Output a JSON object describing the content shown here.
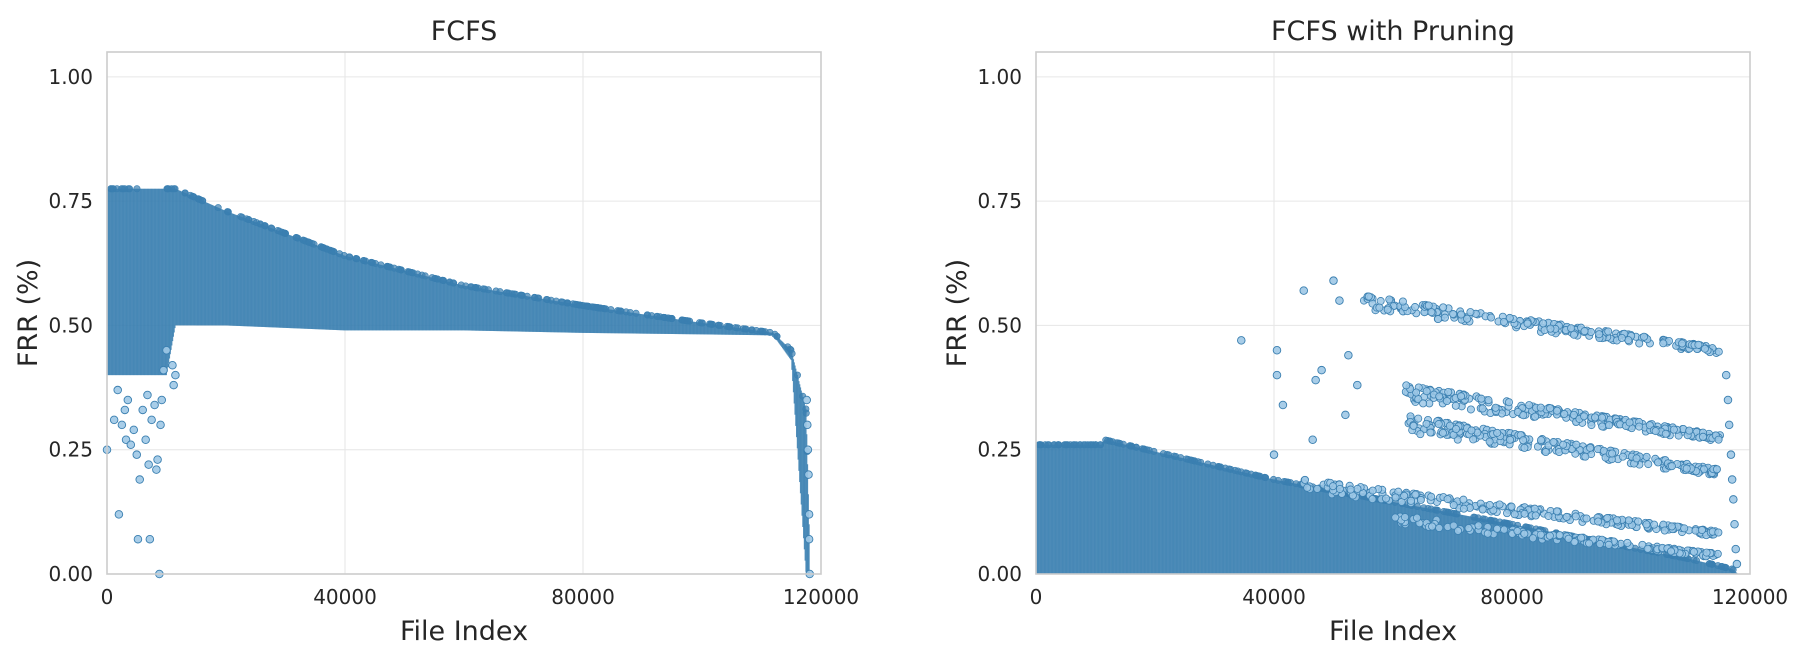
{
  "chart_data": [
    {
      "type": "scatter",
      "title": "FCFS",
      "xlabel": "File Index",
      "ylabel": "FRR (%)",
      "xlim": [
        0,
        120000
      ],
      "ylim": [
        0,
        1.05
      ],
      "xticks": [
        0,
        40000,
        80000,
        120000
      ],
      "yticks": [
        0.0,
        0.25,
        0.5,
        0.75,
        1.0
      ],
      "xtick_labels": [
        "0",
        "40000",
        "80000",
        "120000"
      ],
      "ytick_labels": [
        "0.00",
        "0.25",
        "0.50",
        "0.75",
        "1.00"
      ],
      "grid": true,
      "color": "#3a7fb0",
      "point_fill": "#9ec8e6",
      "band": {
        "x": [
          0,
          10000,
          11500,
          20000,
          40000,
          60000,
          80000,
          100000,
          112000,
          115000,
          117500,
          118000
        ],
        "upper": [
          0.775,
          0.775,
          0.775,
          0.73,
          0.64,
          0.58,
          0.54,
          0.505,
          0.485,
          0.45,
          0.33,
          0.1
        ],
        "lower": [
          0.4,
          0.4,
          0.5,
          0.5,
          0.49,
          0.49,
          0.485,
          0.482,
          0.48,
          0.43,
          0.0,
          0.0
        ]
      },
      "points": [
        [
          0,
          0.25
        ],
        [
          1200,
          0.31
        ],
        [
          1800,
          0.37
        ],
        [
          2000,
          0.12
        ],
        [
          2500,
          0.3
        ],
        [
          3000,
          0.33
        ],
        [
          3200,
          0.27
        ],
        [
          3500,
          0.35
        ],
        [
          4000,
          0.26
        ],
        [
          4500,
          0.29
        ],
        [
          5000,
          0.24
        ],
        [
          5200,
          0.07
        ],
        [
          5500,
          0.19
        ],
        [
          6000,
          0.33
        ],
        [
          6500,
          0.27
        ],
        [
          6800,
          0.36
        ],
        [
          7000,
          0.22
        ],
        [
          7200,
          0.07
        ],
        [
          7500,
          0.31
        ],
        [
          8000,
          0.34
        ],
        [
          8300,
          0.21
        ],
        [
          8500,
          0.23
        ],
        [
          8800,
          0.0
        ],
        [
          9000,
          0.3
        ],
        [
          9200,
          0.35
        ],
        [
          9500,
          0.41
        ],
        [
          10000,
          0.45
        ],
        [
          11000,
          0.42
        ],
        [
          11200,
          0.38
        ],
        [
          11500,
          0.4
        ],
        [
          117600,
          0.35
        ],
        [
          117700,
          0.3
        ],
        [
          117800,
          0.25
        ],
        [
          117900,
          0.2
        ],
        [
          118000,
          0.12
        ],
        [
          118000,
          0.07
        ],
        [
          118100,
          0.0
        ]
      ]
    },
    {
      "type": "scatter",
      "title": "FCFS with Pruning",
      "xlabel": "File Index",
      "ylabel": "FRR (%)",
      "xlim": [
        0,
        120000
      ],
      "ylim": [
        0,
        1.05
      ],
      "xticks": [
        0,
        40000,
        80000,
        120000
      ],
      "yticks": [
        0.0,
        0.25,
        0.5,
        0.75,
        1.0
      ],
      "xtick_labels": [
        "0",
        "40000",
        "80000",
        "120000"
      ],
      "ytick_labels": [
        "0.00",
        "0.25",
        "0.50",
        "0.75",
        "1.00"
      ],
      "grid": true,
      "color": "#3a7fb0",
      "point_fill": "#9ec8e6",
      "band": {
        "x": [
          0,
          11000,
          11500,
          40000,
          80000,
          110000,
          117000,
          118000
        ],
        "upper": [
          0.26,
          0.26,
          0.27,
          0.19,
          0.1,
          0.03,
          0.01,
          0.0
        ],
        "lower": [
          0.0,
          0.0,
          0.0,
          0.0,
          0.0,
          0.0,
          0.0,
          0.0
        ]
      },
      "clusters": [
        {
          "x": [
            55000,
            115000
          ],
          "y": [
            0.56,
            0.455
          ],
          "spread": 0.03,
          "n": 220
        },
        {
          "x": [
            62000,
            115000
          ],
          "y": [
            0.38,
            0.28
          ],
          "spread": 0.035,
          "n": 260
        },
        {
          "x": [
            62000,
            115000
          ],
          "y": [
            0.32,
            0.21
          ],
          "spread": 0.035,
          "n": 240
        },
        {
          "x": [
            45000,
            115000
          ],
          "y": [
            0.19,
            0.085
          ],
          "spread": 0.025,
          "n": 240
        },
        {
          "x": [
            60000,
            115000
          ],
          "y": [
            0.12,
            0.04
          ],
          "spread": 0.02,
          "n": 160
        }
      ],
      "points": [
        [
          34500,
          0.47
        ],
        [
          40500,
          0.45
        ],
        [
          40500,
          0.4
        ],
        [
          41500,
          0.34
        ],
        [
          45000,
          0.57
        ],
        [
          46500,
          0.27
        ],
        [
          47000,
          0.39
        ],
        [
          48000,
          0.41
        ],
        [
          50000,
          0.59
        ],
        [
          51000,
          0.55
        ],
        [
          52000,
          0.32
        ],
        [
          52500,
          0.44
        ],
        [
          54000,
          0.38
        ],
        [
          40000,
          0.24
        ],
        [
          116000,
          0.4
        ],
        [
          116300,
          0.35
        ],
        [
          116500,
          0.3
        ],
        [
          116800,
          0.24
        ],
        [
          117000,
          0.19
        ],
        [
          117200,
          0.15
        ],
        [
          117400,
          0.1
        ],
        [
          117600,
          0.05
        ],
        [
          117800,
          0.02
        ]
      ]
    }
  ]
}
